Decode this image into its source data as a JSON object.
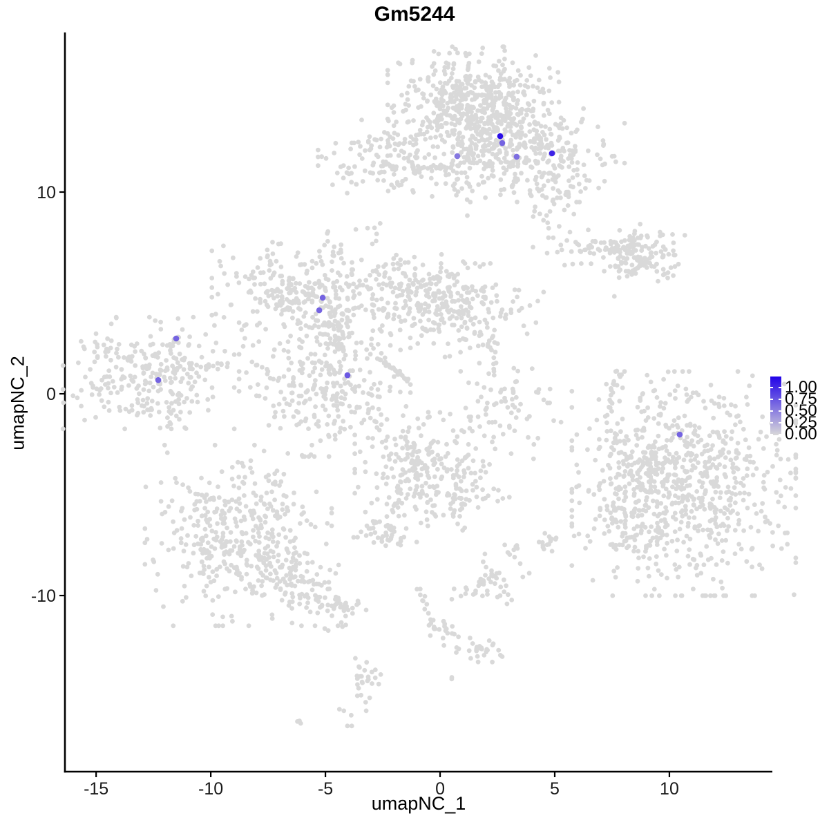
{
  "title": "Gm5244",
  "axes": {
    "x": {
      "label": "umapNC_1",
      "ticks": [
        -15,
        -10,
        -5,
        0,
        5,
        10
      ],
      "lim": [
        -16.36,
        14.49
      ]
    },
    "y": {
      "label": "umapNC_2",
      "ticks": [
        -10,
        0,
        10
      ],
      "lim": [
        -18.73,
        17.91
      ]
    }
  },
  "legend": {
    "labels": [
      "1.00",
      "0.75",
      "0.50",
      "0.25",
      "0.00"
    ]
  },
  "style": {
    "point_color": "#D9D9D9",
    "high_color": "#2102E8",
    "low_color": "#D9D9D9",
    "axis_color": "#000000",
    "tick_text_color": "#1a1a1a",
    "point_radius": 3.4,
    "highlight_radius": 4.3
  },
  "chart_data": {
    "type": "scatter",
    "title": "Gm5244",
    "xlabel": "umapNC_1",
    "ylabel": "umapNC_2",
    "xlim": [
      -16.36,
      14.49
    ],
    "ylim": [
      -18.73,
      17.91
    ],
    "legend_ticks": [
      1.0,
      0.75,
      0.5,
      0.25,
      0.0
    ],
    "colorbar": {
      "low": 0.0,
      "high": 1.0
    },
    "clusters": [
      {
        "x": 1.45,
        "y": 14.73,
        "sx": 1.66,
        "sy": 1.1,
        "n": 380
      },
      {
        "x": 1.9,
        "y": 13.18,
        "sx": 1.36,
        "sy": 1.03,
        "n": 200
      },
      {
        "x": 1.14,
        "y": 11.47,
        "sx": 0.54,
        "sy": 1.2,
        "n": 70
      },
      {
        "x": 4.31,
        "y": 11.82,
        "sx": 1.66,
        "sy": 1.03,
        "n": 220
      },
      {
        "x": 4.91,
        "y": 9.69,
        "sx": 0.75,
        "sy": 1.3,
        "n": 50
      },
      {
        "x": -2.26,
        "y": 11.64,
        "sx": 1.36,
        "sy": 0.86,
        "n": 140
      },
      {
        "x": -3.22,
        "y": 8.18,
        "sx": 0.36,
        "sy": 0.27,
        "n": 6
      },
      {
        "x": -4.7,
        "y": 7.33,
        "sx": 0.27,
        "sy": 0.38,
        "n": 8
      },
      {
        "x": -6.69,
        "y": 5.41,
        "sx": 1.45,
        "sy": 1.13,
        "n": 170
      },
      {
        "x": -5.09,
        "y": 4.25,
        "sx": 0.96,
        "sy": 0.89,
        "n": 90
      },
      {
        "x": -4.04,
        "y": 5.48,
        "sx": 0.3,
        "sy": 0.96,
        "n": 24
      },
      {
        "x": -5.03,
        "y": 0.58,
        "sx": 1.66,
        "sy": 1.64,
        "n": 300
      },
      {
        "x": -1.17,
        "y": 5.27,
        "sx": 1.36,
        "sy": 0.96,
        "n": 140
      },
      {
        "x": 0.78,
        "y": 4.14,
        "sx": 1.66,
        "sy": 1.03,
        "n": 200
      },
      {
        "x": 2.71,
        "y": -0.68,
        "sx": 1.14,
        "sy": 1.13,
        "n": 75
      },
      {
        "x": 3.83,
        "y": -2.16,
        "sx": 0.05,
        "sy": 0.05,
        "n": 1
      },
      {
        "x": 7.17,
        "y": 7.09,
        "sx": 1.14,
        "sy": 0.45,
        "n": 75
      },
      {
        "x": 9.01,
        "y": 6.95,
        "sx": 0.84,
        "sy": 0.65,
        "n": 95
      },
      {
        "x": 7.62,
        "y": 4.79,
        "sx": 0.05,
        "sy": 0.05,
        "n": 1
      },
      {
        "x": -12.71,
        "y": 1.03,
        "sx": 1.66,
        "sy": 1.23,
        "n": 260
      },
      {
        "x": -11.42,
        "y": -0.75,
        "sx": 0.3,
        "sy": 0.3,
        "n": 8
      },
      {
        "x": -8.8,
        "y": -7.02,
        "sx": 1.81,
        "sy": 1.99,
        "n": 400
      },
      {
        "x": -6.17,
        "y": -9.42,
        "sx": 1.27,
        "sy": 0.82,
        "n": 110,
        "rot": -25
      },
      {
        "x": -4.22,
        "y": -10.41,
        "sx": 0.45,
        "sy": 0.31,
        "n": 25
      },
      {
        "x": -4.28,
        "y": -11.51,
        "sx": 0.2,
        "sy": 0.15,
        "n": 3
      },
      {
        "x": -0.66,
        "y": -3.84,
        "sx": 1.36,
        "sy": 1.3,
        "n": 240
      },
      {
        "x": 0.93,
        "y": -5.21,
        "sx": 0.3,
        "sy": 0.55,
        "n": 25
      },
      {
        "x": -2.56,
        "y": -6.92,
        "sx": 0.6,
        "sy": 0.41,
        "n": 40
      },
      {
        "x": -1.05,
        "y": -7.4,
        "sx": 0.05,
        "sy": 0.05,
        "n": 1
      },
      {
        "x": 2.38,
        "y": -5.1,
        "sx": 0.3,
        "sy": 0.2,
        "n": 7
      },
      {
        "x": 1.93,
        "y": -5.17,
        "sx": 0.05,
        "sy": 0.05,
        "n": 1
      },
      {
        "x": 4.79,
        "y": -7.43,
        "sx": 0.35,
        "sy": 0.35,
        "n": 14
      },
      {
        "x": 4.34,
        "y": -7.36,
        "sx": 0.05,
        "sy": 0.05,
        "n": 1
      },
      {
        "x": 3.13,
        "y": -7.67,
        "sx": 0.2,
        "sy": 0.35,
        "n": 9
      },
      {
        "x": 2.26,
        "y": -8.77,
        "sx": 0.25,
        "sy": 0.4,
        "n": 11
      },
      {
        "x": 2.2,
        "y": -9.55,
        "sx": 0.75,
        "sy": 0.4,
        "n": 35
      },
      {
        "x": -0.27,
        "y": -11.81,
        "sx": 0.42,
        "sy": 0.3,
        "n": 14,
        "rot": -30
      },
      {
        "x": 1.78,
        "y": -12.67,
        "sx": 0.57,
        "sy": 0.3,
        "n": 28
      },
      {
        "x": -3.49,
        "y": -14.55,
        "sx": 0.4,
        "sy": 0.85,
        "n": 32
      },
      {
        "x": -6.14,
        "y": -16.23,
        "sx": 0.14,
        "sy": 0.1,
        "n": 3,
        "rot": -40
      },
      {
        "x": 0.42,
        "y": -14.08,
        "sx": 0.14,
        "sy": 0.08,
        "n": 2
      },
      {
        "x": 10.63,
        "y": -4.45,
        "sx": 2.17,
        "sy": 2.47,
        "n": 750
      },
      {
        "x": 8.43,
        "y": -4.86,
        "sx": 0.84,
        "sy": 1.88,
        "n": 90
      },
      {
        "x": 8.07,
        "y": -6.85,
        "sx": 0.6,
        "sy": 0.8,
        "n": 25
      }
    ],
    "chains": [
      {
        "pts": [
          [
            -1.27,
            11.2
          ],
          [
            0.54,
            11.23
          ]
        ],
        "n": 20,
        "j": 0.08
      },
      {
        "pts": [
          [
            -4.49,
            3.36
          ],
          [
            -4.25,
            2.12
          ]
        ],
        "n": 30,
        "j": 0.12
      },
      {
        "pts": [
          [
            -2.92,
            4.45
          ],
          [
            -1.87,
            3.77
          ]
        ],
        "n": 8,
        "j": 0.1
      },
      {
        "pts": [
          [
            -2.65,
            1.75
          ],
          [
            -1.39,
            0.65
          ]
        ],
        "n": 26,
        "j": 0.05
      },
      {
        "pts": [
          [
            2.26,
            3.15
          ],
          [
            2.38,
            1.03
          ]
        ],
        "n": 12,
        "j": 0.1
      },
      {
        "pts": [
          [
            0.54,
            3.42
          ],
          [
            2.05,
            2.91
          ]
        ],
        "n": 8,
        "j": 0.1
      },
      {
        "pts": [
          [
            8.16,
            5.82
          ],
          [
            8.83,
            6.34
          ]
        ],
        "n": 9,
        "j": 0.06
      },
      {
        "pts": [
          [
            -11.87,
            2.23
          ],
          [
            -11.36,
            2.77
          ]
        ],
        "n": 12,
        "j": 0.07
      },
      {
        "pts": [
          [
            -10.6,
            1.34
          ],
          [
            -9.16,
            1.47
          ]
        ],
        "n": 12,
        "j": 0.07
      },
      {
        "pts": [
          [
            -1.48,
            -5.0
          ],
          [
            -2.14,
            -5.92
          ]
        ],
        "n": 10,
        "j": 0.08
      },
      {
        "pts": [
          [
            -1.02,
            -9.45
          ],
          [
            -0.21,
            -11.71
          ]
        ],
        "n": 13,
        "j": 0.08
      },
      {
        "pts": [
          [
            0.24,
            -11.78
          ],
          [
            0.81,
            -12.02
          ]
        ],
        "n": 5,
        "j": 0.05
      },
      {
        "pts": [
          [
            7.86,
            1.23
          ],
          [
            7.5,
            0.07
          ],
          [
            7.32,
            -1.1
          ]
        ],
        "n": 20,
        "j": 0.08
      },
      {
        "pts": [
          [
            7.2,
            -1.44
          ],
          [
            7.56,
            -2.74
          ]
        ],
        "n": 6,
        "j": 0.1
      }
    ],
    "highlights": [
      {
        "x": 2.71,
        "y": 12.43,
        "value": 0.55
      },
      {
        "x": 0.75,
        "y": 11.78,
        "value": 0.45
      },
      {
        "x": 3.34,
        "y": 11.75,
        "value": 0.5
      },
      {
        "x": 4.88,
        "y": 11.92,
        "value": 0.85
      },
      {
        "x": 2.62,
        "y": 12.77,
        "value": 0.95
      },
      {
        "x": -5.12,
        "y": 4.76,
        "value": 0.55
      },
      {
        "x": -5.27,
        "y": 4.14,
        "value": 0.55
      },
      {
        "x": -4.04,
        "y": 0.92,
        "value": 0.6
      },
      {
        "x": -11.51,
        "y": 2.74,
        "value": 0.55
      },
      {
        "x": -12.29,
        "y": 0.68,
        "value": 0.55
      },
      {
        "x": 10.45,
        "y": -2.02,
        "value": 0.55
      }
    ]
  }
}
